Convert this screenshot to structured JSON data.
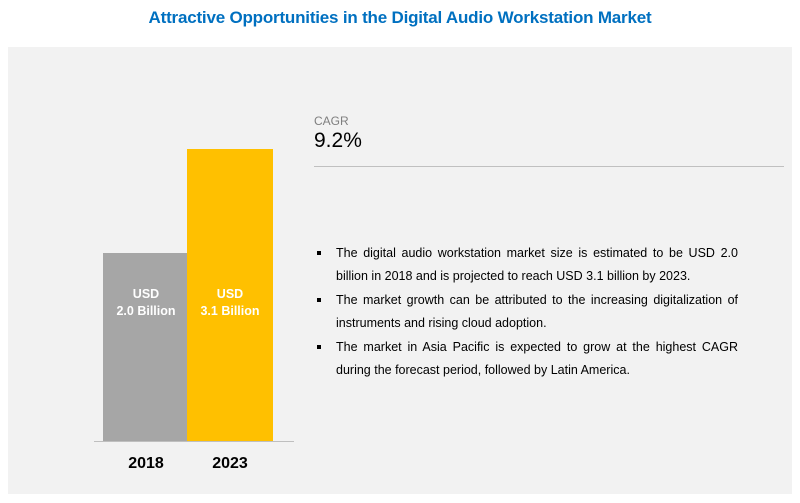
{
  "title": "Attractive Opportunities in the Digital Audio Workstation Market",
  "colors": {
    "title": "#0070c0",
    "bar_2018": "#a6a6a6",
    "bar_2023": "#ffc000"
  },
  "cagr": {
    "label": "CAGR",
    "value": "9.2%"
  },
  "bullets": [
    "The digital audio workstation market size is estimated to be USD 2.0 billion in 2018 and is projected to reach USD 3.1 billion by 2023.",
    "The market growth can be attributed to the increasing digitalization of instruments and rising cloud adoption.",
    "The market in Asia Pacific is expected to grow at the highest CAGR during the forecast period, followed by Latin America."
  ],
  "chart_data": {
    "type": "bar",
    "categories": [
      "2018",
      "2023"
    ],
    "values": [
      2.0,
      3.1
    ],
    "unit": "USD Billion",
    "bar_labels": [
      {
        "line1": "USD",
        "line2": "2.0 Billion"
      },
      {
        "line1": "USD",
        "line2": "3.1 Billion"
      }
    ],
    "ylim": [
      0,
      3.1
    ],
    "title": "Attractive Opportunities in the Digital Audio Workstation Market",
    "xlabel": "",
    "ylabel": "",
    "grid": false
  }
}
